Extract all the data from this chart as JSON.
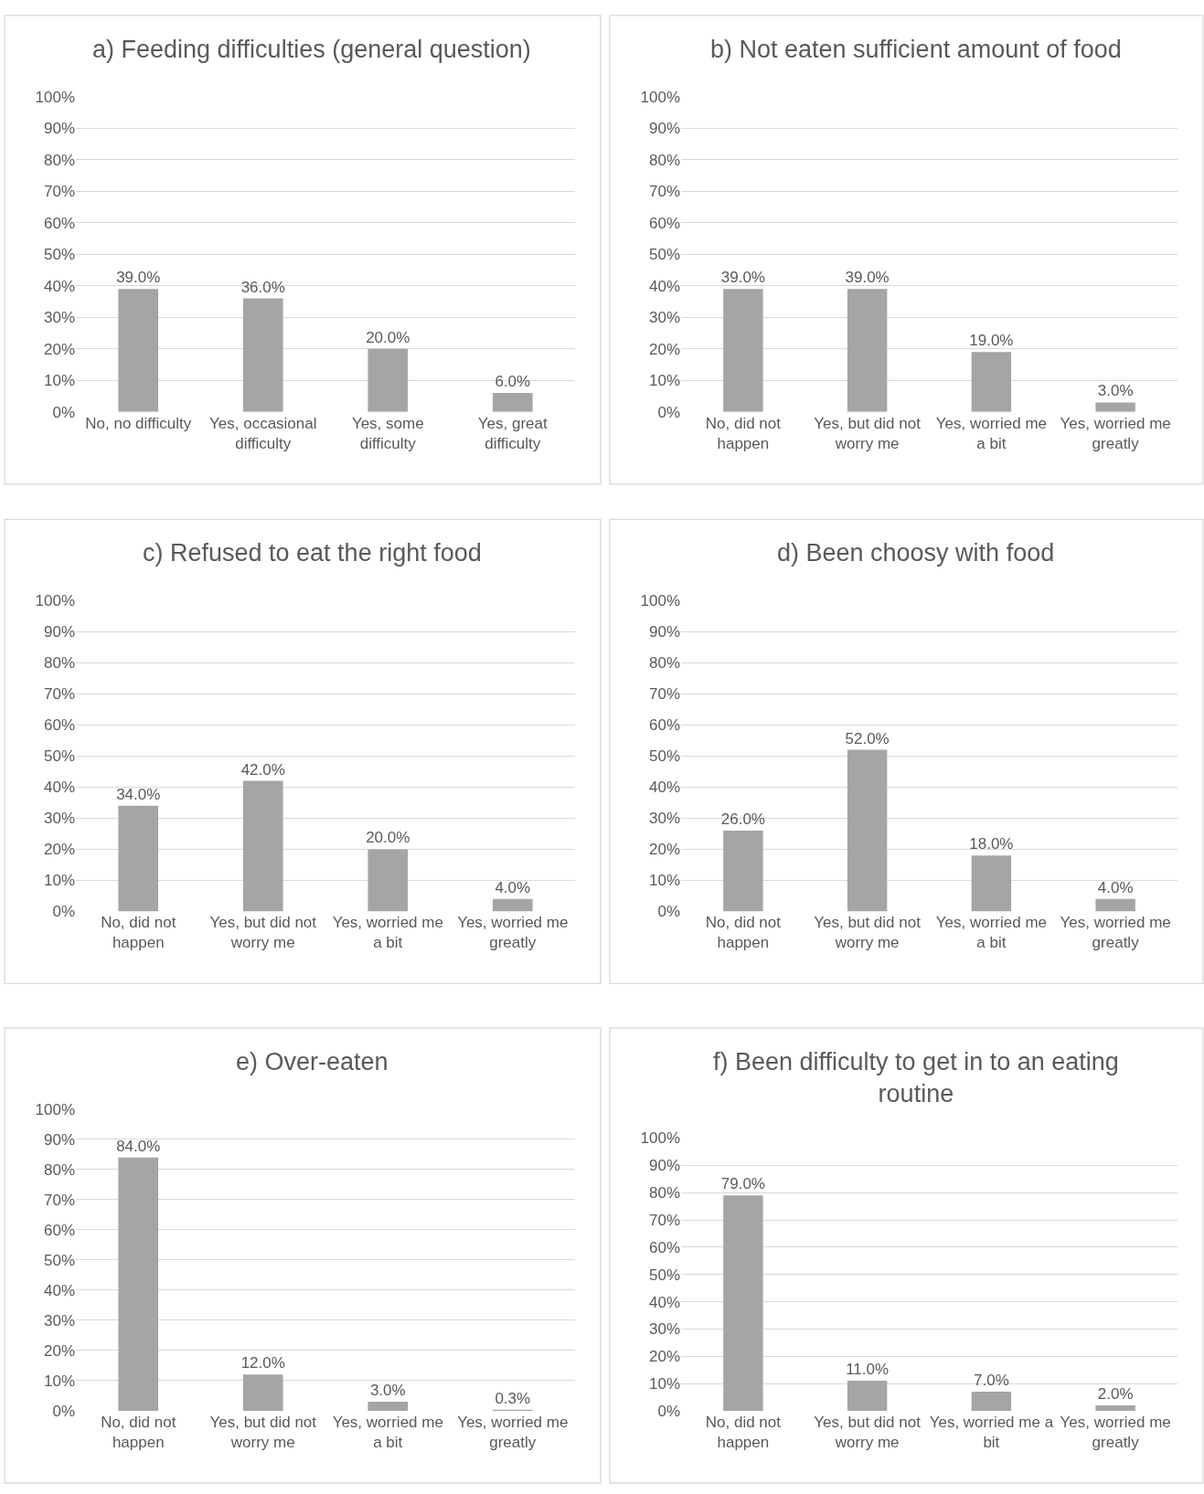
{
  "chart_data": [
    {
      "type": "bar",
      "title": "a) Feeding difficulties (general question)",
      "categories": [
        "No, no difficulty",
        "Yes, occasional difficulty",
        "Yes, some difficulty",
        "Yes, great difficulty"
      ],
      "values": [
        39.0,
        36.0,
        20.0,
        6.0
      ],
      "value_labels": [
        "39.0%",
        "36.0%",
        "20.0%",
        "6.0%"
      ],
      "color": "#a5a5a5",
      "ylim": [
        0,
        100
      ],
      "yticks": [
        {
          "value": 0,
          "label": "0%"
        },
        {
          "value": 10,
          "label": "10%"
        },
        {
          "value": 20,
          "label": "20%"
        },
        {
          "value": 30,
          "label": "30%"
        },
        {
          "value": 40,
          "label": "40%"
        },
        {
          "value": 50,
          "label": "50%"
        },
        {
          "value": 60,
          "label": "60%"
        },
        {
          "value": 70,
          "label": "70%"
        },
        {
          "value": 80,
          "label": "80%"
        },
        {
          "value": 90,
          "label": "90%"
        },
        {
          "value": 100,
          "label": "100%"
        }
      ],
      "grid": "y"
    },
    {
      "type": "bar",
      "title": "b) Not eaten sufficient amount of food",
      "categories": [
        "No, did not happen",
        "Yes, but did not worry me",
        "Yes, worried me a bit",
        "Yes, worried me greatly"
      ],
      "values": [
        39.0,
        39.0,
        19.0,
        3.0
      ],
      "value_labels": [
        "39.0%",
        "39.0%",
        "19.0%",
        "3.0%"
      ],
      "color": "#a5a5a5",
      "ylim": [
        0,
        100
      ],
      "yticks": [
        {
          "value": 0,
          "label": "0%"
        },
        {
          "value": 10,
          "label": "10%"
        },
        {
          "value": 20,
          "label": "20%"
        },
        {
          "value": 30,
          "label": "30%"
        },
        {
          "value": 40,
          "label": "40%"
        },
        {
          "value": 50,
          "label": "50%"
        },
        {
          "value": 60,
          "label": "60%"
        },
        {
          "value": 70,
          "label": "70%"
        },
        {
          "value": 80,
          "label": "80%"
        },
        {
          "value": 90,
          "label": "90%"
        },
        {
          "value": 100,
          "label": "100%"
        }
      ],
      "grid": "y"
    },
    {
      "type": "bar",
      "title": "c) Refused to eat the right food",
      "categories": [
        "No, did not happen",
        "Yes, but did not worry me",
        "Yes, worried me a bit",
        "Yes, worried me greatly"
      ],
      "values": [
        34.0,
        42.0,
        20.0,
        4.0
      ],
      "value_labels": [
        "34.0%",
        "42.0%",
        "20.0%",
        "4.0%"
      ],
      "color": "#a5a5a5",
      "ylim": [
        0,
        100
      ],
      "yticks": [
        {
          "value": 0,
          "label": "0%"
        },
        {
          "value": 10,
          "label": "10%"
        },
        {
          "value": 20,
          "label": "20%"
        },
        {
          "value": 30,
          "label": "30%"
        },
        {
          "value": 40,
          "label": "40%"
        },
        {
          "value": 50,
          "label": "50%"
        },
        {
          "value": 60,
          "label": "60%"
        },
        {
          "value": 70,
          "label": "70%"
        },
        {
          "value": 80,
          "label": "80%"
        },
        {
          "value": 90,
          "label": "90%"
        },
        {
          "value": 100,
          "label": "100%"
        }
      ],
      "grid": "y"
    },
    {
      "type": "bar",
      "title": "d) Been choosy with food",
      "categories": [
        "No, did not happen",
        "Yes, but did not worry me",
        "Yes, worried me a bit",
        "Yes, worried me greatly"
      ],
      "values": [
        26.0,
        52.0,
        18.0,
        4.0
      ],
      "value_labels": [
        "26.0%",
        "52.0%",
        "18.0%",
        "4.0%"
      ],
      "color": "#a5a5a5",
      "ylim": [
        0,
        100
      ],
      "yticks": [
        {
          "value": 0,
          "label": "0%"
        },
        {
          "value": 10,
          "label": "10%"
        },
        {
          "value": 20,
          "label": "20%"
        },
        {
          "value": 30,
          "label": "30%"
        },
        {
          "value": 40,
          "label": "40%"
        },
        {
          "value": 50,
          "label": "50%"
        },
        {
          "value": 60,
          "label": "60%"
        },
        {
          "value": 70,
          "label": "70%"
        },
        {
          "value": 80,
          "label": "80%"
        },
        {
          "value": 90,
          "label": "90%"
        },
        {
          "value": 100,
          "label": "100%"
        }
      ],
      "grid": "y"
    },
    {
      "type": "bar",
      "title": "e) Over-eaten",
      "categories": [
        "No, did not happen",
        "Yes, but did not worry me",
        "Yes, worried me a bit",
        "Yes, worried me greatly"
      ],
      "values": [
        84.0,
        12.0,
        3.0,
        0.3
      ],
      "value_labels": [
        "84.0%",
        "12.0%",
        "3.0%",
        "0.3%"
      ],
      "color": "#a5a5a5",
      "ylim": [
        0,
        100
      ],
      "yticks": [
        {
          "value": 0,
          "label": "0%"
        },
        {
          "value": 10,
          "label": "10%"
        },
        {
          "value": 20,
          "label": "20%"
        },
        {
          "value": 30,
          "label": "30%"
        },
        {
          "value": 40,
          "label": "40%"
        },
        {
          "value": 50,
          "label": "50%"
        },
        {
          "value": 60,
          "label": "60%"
        },
        {
          "value": 70,
          "label": "70%"
        },
        {
          "value": 80,
          "label": "80%"
        },
        {
          "value": 90,
          "label": "90%"
        },
        {
          "value": 100,
          "label": "100%"
        }
      ],
      "grid": "y"
    },
    {
      "type": "bar",
      "title": "f) Been difficulty to get in to an eating routine",
      "categories": [
        "No, did not happen",
        "Yes, but did not worry me",
        "Yes, worried me a bit",
        "Yes, worried me greatly"
      ],
      "values": [
        79.0,
        11.0,
        7.0,
        2.0
      ],
      "value_labels": [
        "79.0%",
        "11.0%",
        "7.0%",
        "2.0%"
      ],
      "color": "#a5a5a5",
      "ylim": [
        0,
        100
      ],
      "yticks": [
        {
          "value": 0,
          "label": "0%"
        },
        {
          "value": 10,
          "label": "10%"
        },
        {
          "value": 20,
          "label": "20%"
        },
        {
          "value": 30,
          "label": "30%"
        },
        {
          "value": 40,
          "label": "40%"
        },
        {
          "value": 50,
          "label": "50%"
        },
        {
          "value": 60,
          "label": "60%"
        },
        {
          "value": 70,
          "label": "70%"
        },
        {
          "value": 80,
          "label": "80%"
        },
        {
          "value": 90,
          "label": "90%"
        },
        {
          "value": 100,
          "label": "100%"
        }
      ],
      "grid": "y"
    }
  ]
}
